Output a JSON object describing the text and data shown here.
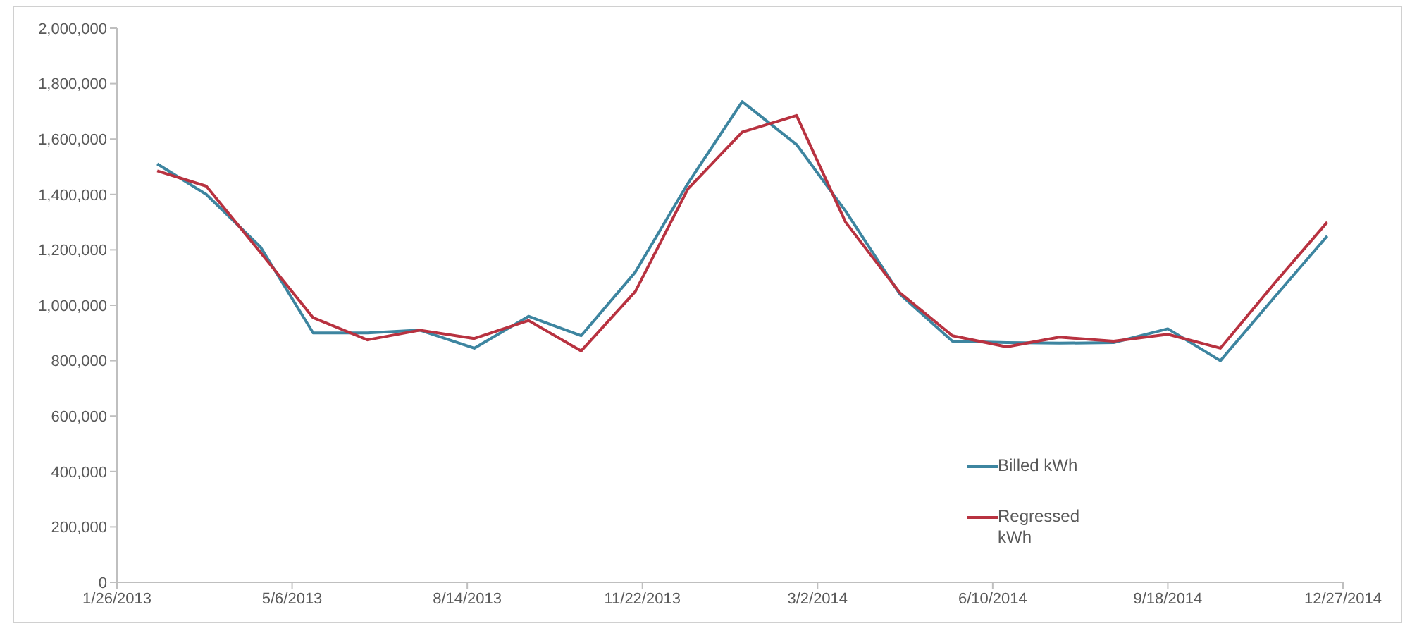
{
  "chart_data": {
    "type": "line",
    "x": [
      "2013-02-18",
      "2013-03-18",
      "2013-04-18",
      "2013-05-18",
      "2013-06-18",
      "2013-07-18",
      "2013-08-18",
      "2013-09-18",
      "2013-10-18",
      "2013-11-18",
      "2013-12-18",
      "2014-01-18",
      "2014-02-18",
      "2014-03-18",
      "2014-04-18",
      "2014-05-18",
      "2014-06-18",
      "2014-07-18",
      "2014-08-18",
      "2014-09-18",
      "2014-10-18",
      "2014-11-18",
      "2014-12-18"
    ],
    "series": [
      {
        "name": "Billed kWh",
        "color": "#3d85a0",
        "values": [
          1510000,
          1400000,
          1210000,
          900000,
          900000,
          910000,
          845000,
          960000,
          890000,
          1120000,
          1440000,
          1735000,
          1580000,
          1340000,
          1040000,
          870000,
          865000,
          863000,
          865000,
          915000,
          800000,
          1030000,
          1250000
        ]
      },
      {
        "name": "Regressed kWh",
        "color": "#b83240",
        "values": [
          1485000,
          1430000,
          1190000,
          955000,
          875000,
          910000,
          880000,
          945000,
          835000,
          1050000,
          1420000,
          1625000,
          1685000,
          1300000,
          1045000,
          890000,
          850000,
          885000,
          870000,
          895000,
          845000,
          1080000,
          1300000
        ]
      }
    ],
    "xlim": [
      "2013-01-26",
      "2014-12-27"
    ],
    "xticks": [
      {
        "value": "2013-01-26",
        "label": "1/26/2013"
      },
      {
        "value": "2013-05-06",
        "label": "5/6/2013"
      },
      {
        "value": "2013-08-14",
        "label": "8/14/2013"
      },
      {
        "value": "2013-11-22",
        "label": "11/22/2013"
      },
      {
        "value": "2014-03-02",
        "label": "3/2/2014"
      },
      {
        "value": "2014-06-10",
        "label": "6/10/2014"
      },
      {
        "value": "2014-09-18",
        "label": "9/18/2014"
      },
      {
        "value": "2014-12-27",
        "label": "12/27/2014"
      }
    ],
    "ylim": [
      0,
      2000000
    ],
    "yticks": [
      0,
      {
        "value": 200000,
        "label": "200,000"
      },
      {
        "value": 400000,
        "label": "400,000"
      },
      {
        "value": 600000,
        "label": "600,000"
      },
      {
        "value": 800000,
        "label": "800,000"
      },
      {
        "value": 1000000,
        "label": "1,000,000"
      },
      {
        "value": 1200000,
        "label": "1,200,000"
      },
      {
        "value": 1400000,
        "label": "1,400,000"
      },
      {
        "value": 1600000,
        "label": "1,600,000"
      },
      {
        "value": 1800000,
        "label": "1,800,000"
      },
      {
        "value": 2000000,
        "label": "2,000,000"
      }
    ],
    "legend": "bottom right",
    "marker": "none"
  }
}
